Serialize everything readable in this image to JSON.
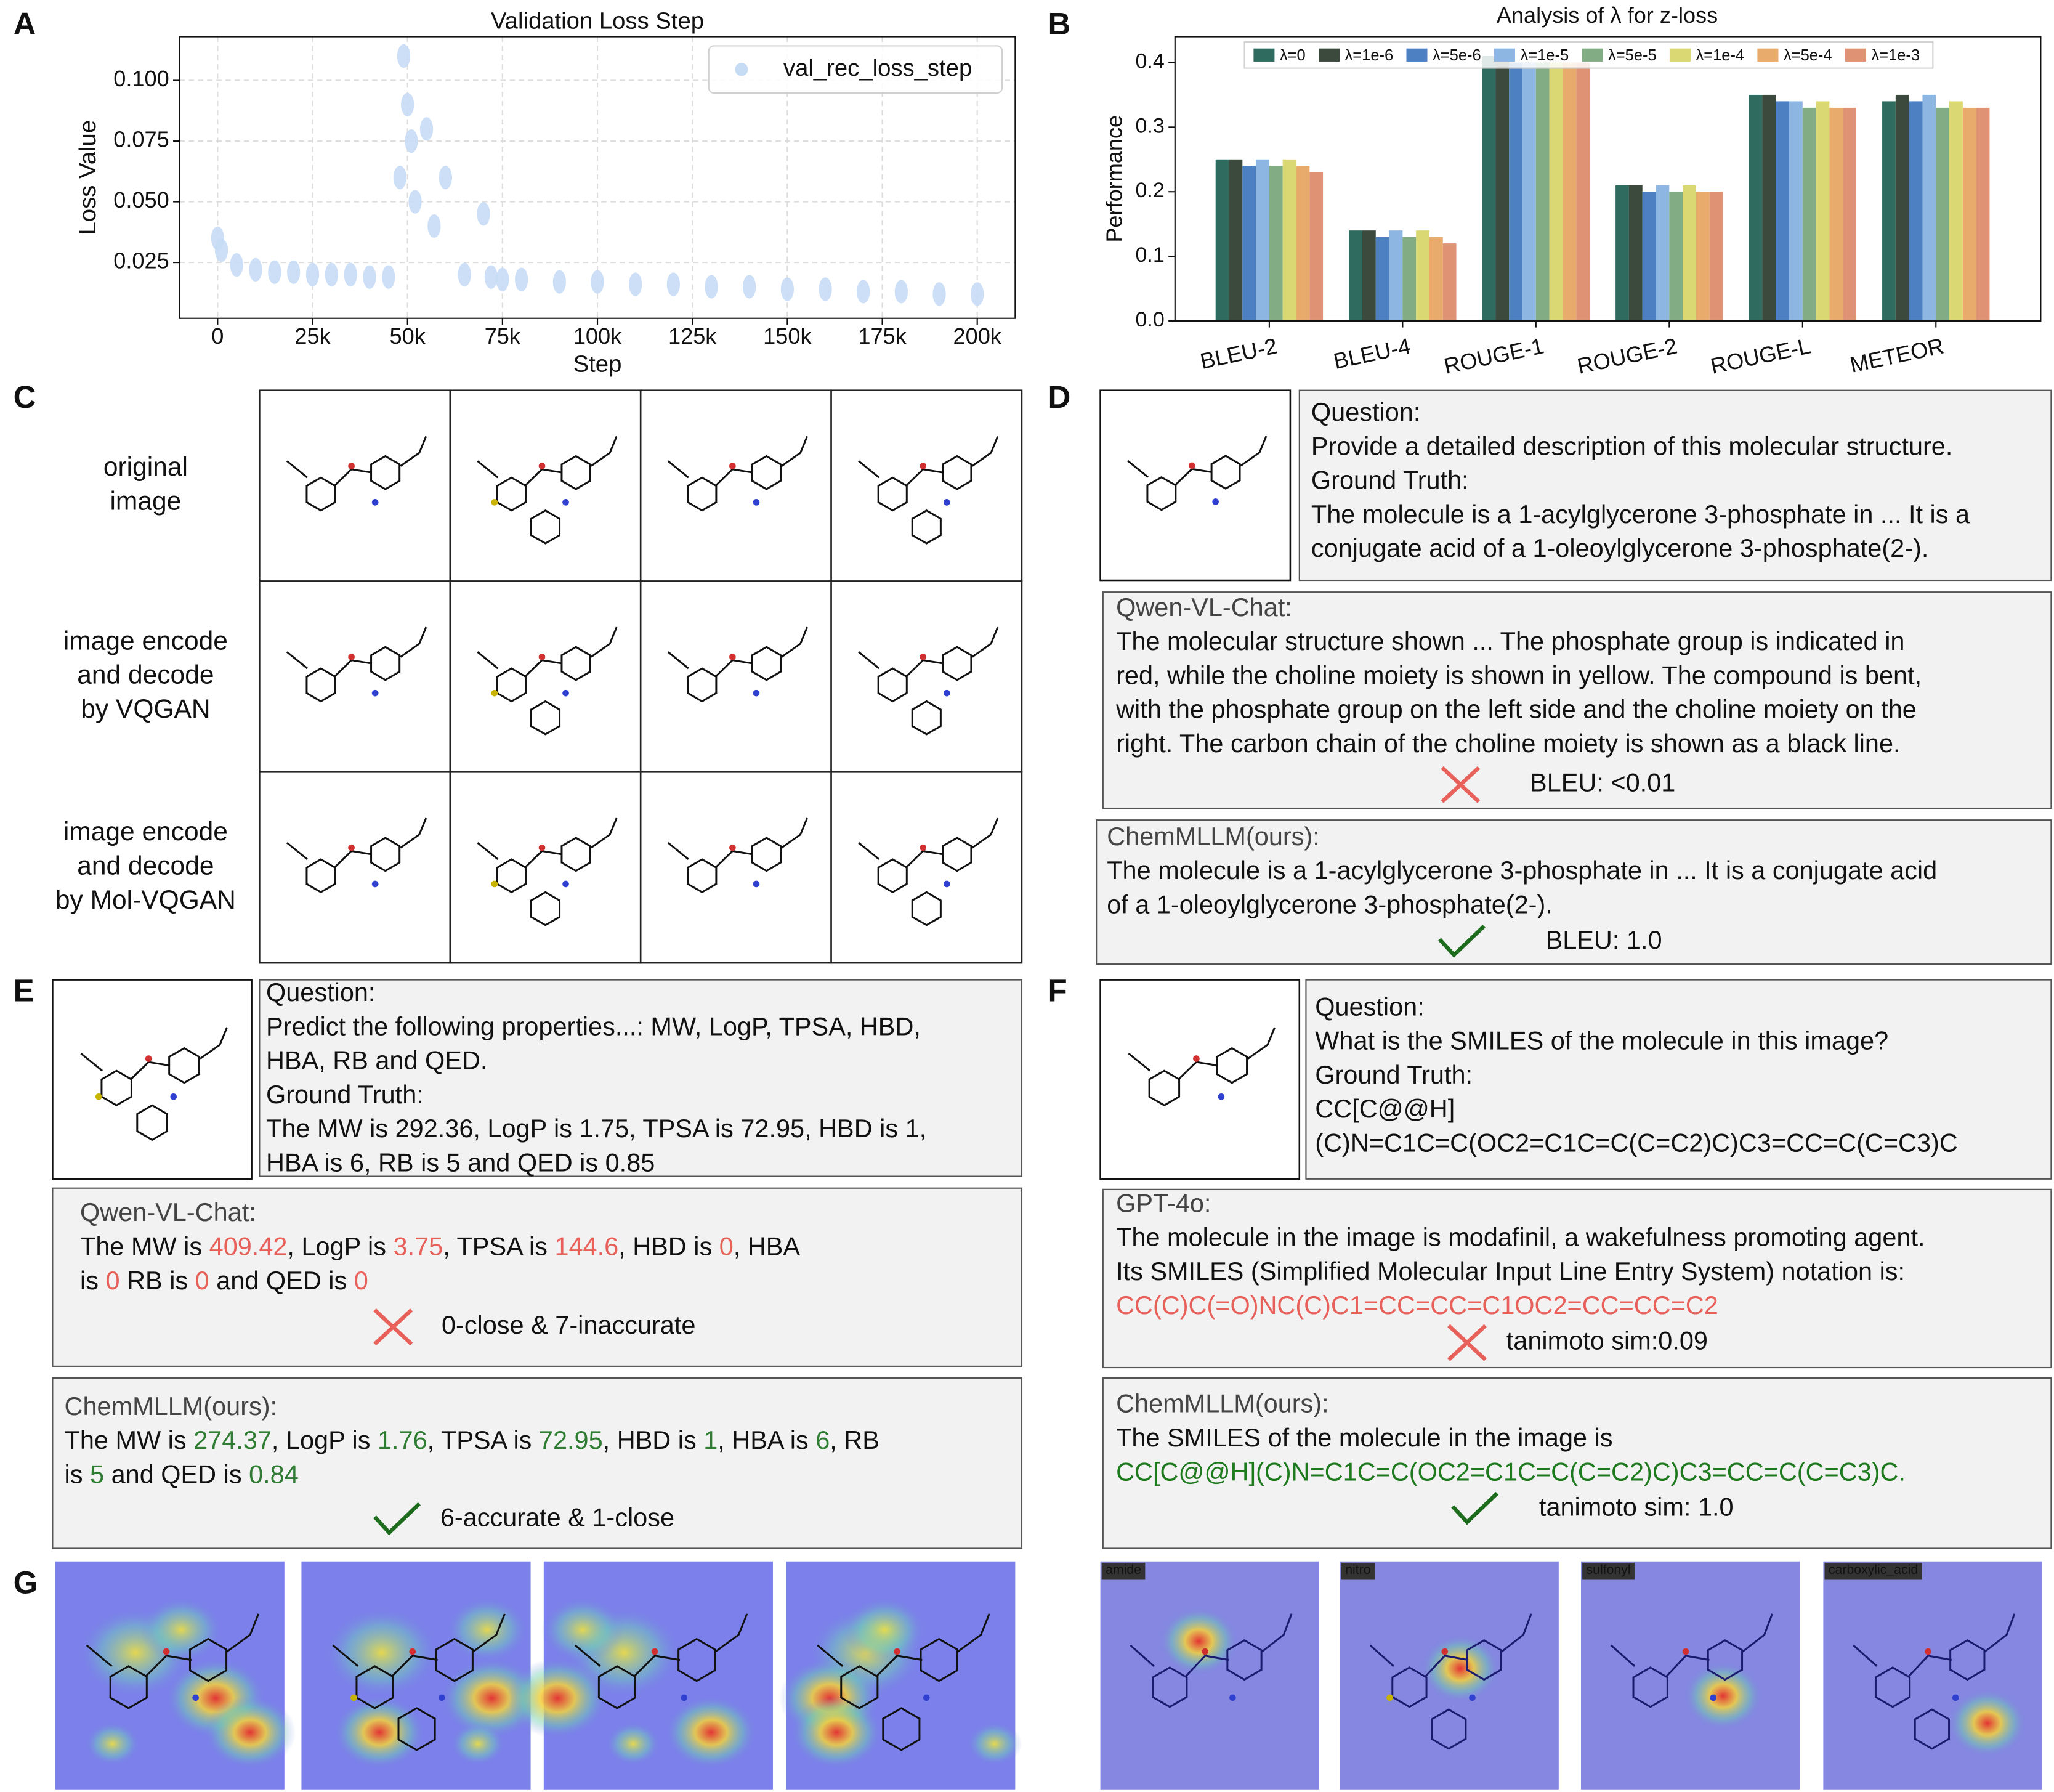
{
  "chart_data": [
    {
      "type": "scatter",
      "title": "Validation Loss Step",
      "xlabel": "Step",
      "ylabel": "Loss Value",
      "series": [
        {
          "name": "val_rec_loss_step",
          "color": "#c6dcf5",
          "x": [
            0,
            1000,
            5000,
            10000,
            15000,
            20000,
            25000,
            30000,
            35000,
            40000,
            45000,
            48000,
            49000,
            50000,
            51000,
            52000,
            55000,
            57000,
            60000,
            65000,
            70000,
            72000,
            75000,
            80000,
            90000,
            100000,
            110000,
            120000,
            130000,
            140000,
            150000,
            160000,
            170000,
            180000,
            190000,
            200000
          ],
          "values": [
            0.035,
            0.03,
            0.024,
            0.022,
            0.021,
            0.021,
            0.02,
            0.02,
            0.02,
            0.019,
            0.019,
            0.06,
            0.11,
            0.09,
            0.075,
            0.05,
            0.08,
            0.04,
            0.06,
            0.02,
            0.045,
            0.019,
            0.018,
            0.018,
            0.017,
            0.017,
            0.016,
            0.016,
            0.015,
            0.015,
            0.014,
            0.014,
            0.013,
            0.013,
            0.012,
            0.012
          ]
        }
      ],
      "xlim": [
        -10000,
        210000
      ],
      "xticks": [
        0,
        {
          "value": 25000,
          "label": "25k"
        },
        {
          "value": 50000,
          "label": "50k"
        },
        {
          "value": 75000,
          "label": "75k"
        },
        {
          "value": 100000,
          "label": "100k"
        },
        {
          "value": 125000,
          "label": "125k"
        },
        {
          "value": 150000,
          "label": "150k"
        },
        {
          "value": 175000,
          "label": "175k"
        },
        {
          "value": 200000,
          "label": "200k"
        }
      ],
      "ylim": [
        0.002,
        0.118
      ],
      "yticks": [
        0.025,
        {
          "value": 0.05,
          "label": "0.050"
        },
        0.075,
        {
          "value": 0.1,
          "label": "0.100"
        }
      ],
      "grid": true,
      "legend": "upper right"
    },
    {
      "type": "bar",
      "title": "Analysis of λ for z-loss",
      "ylabel": "Performance",
      "categories": [
        "BLEU-2",
        "BLEU-4",
        "ROUGE-1",
        "ROUGE-2",
        "ROUGE-L",
        "METEOR"
      ],
      "series": [
        {
          "name": "λ=0",
          "color": "#2f6b5f",
          "values": [
            0.25,
            0.14,
            0.41,
            0.21,
            0.35,
            0.34
          ]
        },
        {
          "name": "λ=1e-6",
          "color": "#3b4a3d",
          "values": [
            0.25,
            0.14,
            0.41,
            0.21,
            0.35,
            0.35
          ]
        },
        {
          "name": "λ=5e-6",
          "color": "#4c80c3",
          "values": [
            0.24,
            0.13,
            0.4,
            0.2,
            0.34,
            0.34
          ]
        },
        {
          "name": "λ=1e-5",
          "color": "#8db6e2",
          "values": [
            0.25,
            0.14,
            0.4,
            0.21,
            0.34,
            0.35
          ]
        },
        {
          "name": "λ=5e-5",
          "color": "#82ad84",
          "values": [
            0.24,
            0.13,
            0.4,
            0.2,
            0.33,
            0.33
          ]
        },
        {
          "name": "λ=1e-4",
          "color": "#d9d873",
          "values": [
            0.25,
            0.14,
            0.4,
            0.21,
            0.34,
            0.34
          ]
        },
        {
          "name": "λ=5e-4",
          "color": "#e9ab6c",
          "values": [
            0.24,
            0.13,
            0.4,
            0.2,
            0.33,
            0.33
          ]
        },
        {
          "name": "λ=1e-3",
          "color": "#e09274",
          "values": [
            0.23,
            0.12,
            0.4,
            0.2,
            0.33,
            0.33
          ]
        }
      ],
      "ylim": [
        0,
        0.44
      ],
      "yticks": [
        {
          "value": 0,
          "label": "0.0"
        },
        0.1,
        0.2,
        0.3,
        0.4
      ],
      "grid": false,
      "legend": "upper center"
    }
  ],
  "panel_labels": [
    "A",
    "B",
    "C",
    "D",
    "E",
    "F",
    "G"
  ],
  "panel_c": {
    "row_labels": [
      [
        "original",
        "image"
      ],
      [
        "image encode",
        "and decode",
        "by VQGAN"
      ],
      [
        "image encode",
        "and decode",
        "by Mol-VQGAN"
      ]
    ]
  },
  "panel_d": {
    "question": {
      "lines": [
        [
          {
            "text": "Question:"
          }
        ],
        [
          {
            "text": "Provide a detailed description of this molecular structure."
          }
        ],
        [
          {
            "text": "Ground Truth:"
          }
        ],
        [
          {
            "text": "The molecule is a 1-acylglycerone 3-phosphate in ... It is a"
          }
        ],
        [
          {
            "text": "conjugate acid of a 1-oleoylglycerone 3-phosphate(2-)."
          }
        ]
      ]
    },
    "baseline": {
      "lines": [
        [
          {
            "text": "Qwen-VL-Chat:",
            "color": "#444444"
          }
        ],
        [
          {
            "text": "The molecular structure shown ... The phosphate group is indicated in"
          }
        ],
        [
          {
            "text": "red, while the choline moiety is shown in yellow. The compound is bent,"
          }
        ],
        [
          {
            "text": "with the phosphate group on the left side and the choline moiety on the"
          }
        ],
        [
          {
            "text": "right. The carbon chain of the choline moiety is shown as a black line."
          }
        ]
      ],
      "verdict": {
        "mark": "cross",
        "text": "BLEU: <0.01",
        "color": "#e8605a"
      }
    },
    "ours": {
      "lines": [
        [
          {
            "text": "ChemMLLM(ours):",
            "color": "#444444"
          }
        ],
        [
          {
            "text": "The molecule is a 1-acylglycerone 3-phosphate in ... It is a conjugate acid"
          }
        ],
        [
          {
            "text": "of a 1-oleoylglycerone 3-phosphate(2-)."
          }
        ]
      ],
      "verdict": {
        "mark": "check",
        "text": "BLEU: 1.0",
        "color": "#1d6b1d"
      }
    }
  },
  "panel_e": {
    "question": {
      "lines": [
        [
          {
            "text": "Question:"
          }
        ],
        [
          {
            "text": "Predict the following properties...: MW, LogP, TPSA, HBD,"
          }
        ],
        [
          {
            "text": "HBA, RB and QED."
          }
        ],
        [
          {
            "text": "Ground Truth:"
          }
        ],
        [
          {
            "text": "The MW is 292.36, LogP is 1.75, TPSA is 72.95, HBD is 1,"
          }
        ],
        [
          {
            "text": "HBA is 6, RB is 5 and QED is 0.85"
          }
        ]
      ]
    },
    "baseline": {
      "lines": [
        [
          {
            "text": "Qwen-VL-Chat:",
            "color": "#444444"
          }
        ],
        [
          {
            "text": "The MW is "
          },
          {
            "text": "409.42",
            "color": "#e8605a"
          },
          {
            "text": ", LogP is "
          },
          {
            "text": "3.75",
            "color": "#e8605a"
          },
          {
            "text": ", TPSA is "
          },
          {
            "text": "144.6",
            "color": "#e8605a"
          },
          {
            "text": ", HBD is "
          },
          {
            "text": "0",
            "color": "#e8605a"
          },
          {
            "text": ", HBA"
          }
        ],
        [
          {
            "text": "is "
          },
          {
            "text": "0",
            "color": "#e8605a"
          },
          {
            "text": " RB is "
          },
          {
            "text": "0",
            "color": "#e8605a"
          },
          {
            "text": " and QED is "
          },
          {
            "text": "0",
            "color": "#e8605a"
          }
        ]
      ],
      "verdict": {
        "mark": "cross",
        "text": "0-close & 7-inaccurate",
        "color": "#e8605a"
      }
    },
    "ours": {
      "lines": [
        [
          {
            "text": "ChemMLLM(ours):",
            "color": "#444444"
          }
        ],
        [
          {
            "text": "The MW is "
          },
          {
            "text": "274.37",
            "color": "#2e7d32"
          },
          {
            "text": ", LogP is "
          },
          {
            "text": "1.76",
            "color": "#2e7d32"
          },
          {
            "text": ", TPSA is "
          },
          {
            "text": "72.95",
            "color": "#2e7d32"
          },
          {
            "text": ", HBD is "
          },
          {
            "text": "1",
            "color": "#2e7d32"
          },
          {
            "text": ", HBA is "
          },
          {
            "text": "6",
            "color": "#2e7d32"
          },
          {
            "text": ", RB"
          }
        ],
        [
          {
            "text": "is "
          },
          {
            "text": "5",
            "color": "#2e7d32"
          },
          {
            "text": " and QED is "
          },
          {
            "text": "0.84",
            "color": "#2e7d32"
          }
        ]
      ],
      "verdict": {
        "mark": "check",
        "text": "6-accurate & 1-close",
        "color": "#1d6b1d"
      }
    }
  },
  "panel_f": {
    "question": {
      "lines": [
        [
          {
            "text": "Question:"
          }
        ],
        [
          {
            "text": "What is the SMILES of the molecule in this image?"
          }
        ],
        [
          {
            "text": "Ground Truth:"
          }
        ],
        [
          {
            "text": "CC[C@@H]"
          }
        ],
        [
          {
            "text": "(C)N=C1C=C(OC2=C1C=C(C=C2)C)C3=CC=C(C=C3)C"
          }
        ]
      ]
    },
    "baseline": {
      "lines": [
        [
          {
            "text": "GPT-4o:",
            "color": "#444444"
          }
        ],
        [
          {
            "text": "The molecule in the image is modafinil, a wakefulness promoting agent."
          }
        ],
        [
          {
            "text": "Its SMILES (Simplified Molecular Input Line Entry System) notation is:"
          }
        ],
        [
          {
            "text": "CC(C)C(=O)NC(C)C1=CC=CC=C1OC2=CC=CC=C2",
            "color": "#e8605a"
          }
        ]
      ],
      "verdict": {
        "mark": "cross",
        "text": "tanimoto sim:0.09",
        "color": "#e8605a"
      }
    },
    "ours": {
      "lines": [
        [
          {
            "text": "ChemMLLM(ours):",
            "color": "#444444"
          }
        ],
        [
          {
            "text": "The SMILES of the molecule in the image is"
          }
        ],
        [
          {
            "text": "CC[C@@H](C)N=C1C=C(OC2=C1C=C(C=C2)C)C3=CC=C(C=C3)C.",
            "color": "#1d7a1d"
          }
        ]
      ],
      "verdict": {
        "mark": "check",
        "text": "tanimoto sim: 1.0",
        "color": "#1d6b1d"
      }
    }
  },
  "panel_g": {
    "group_labels": [
      "amide",
      "nitro",
      "sulfonyl",
      "carboxylic_acid"
    ]
  }
}
